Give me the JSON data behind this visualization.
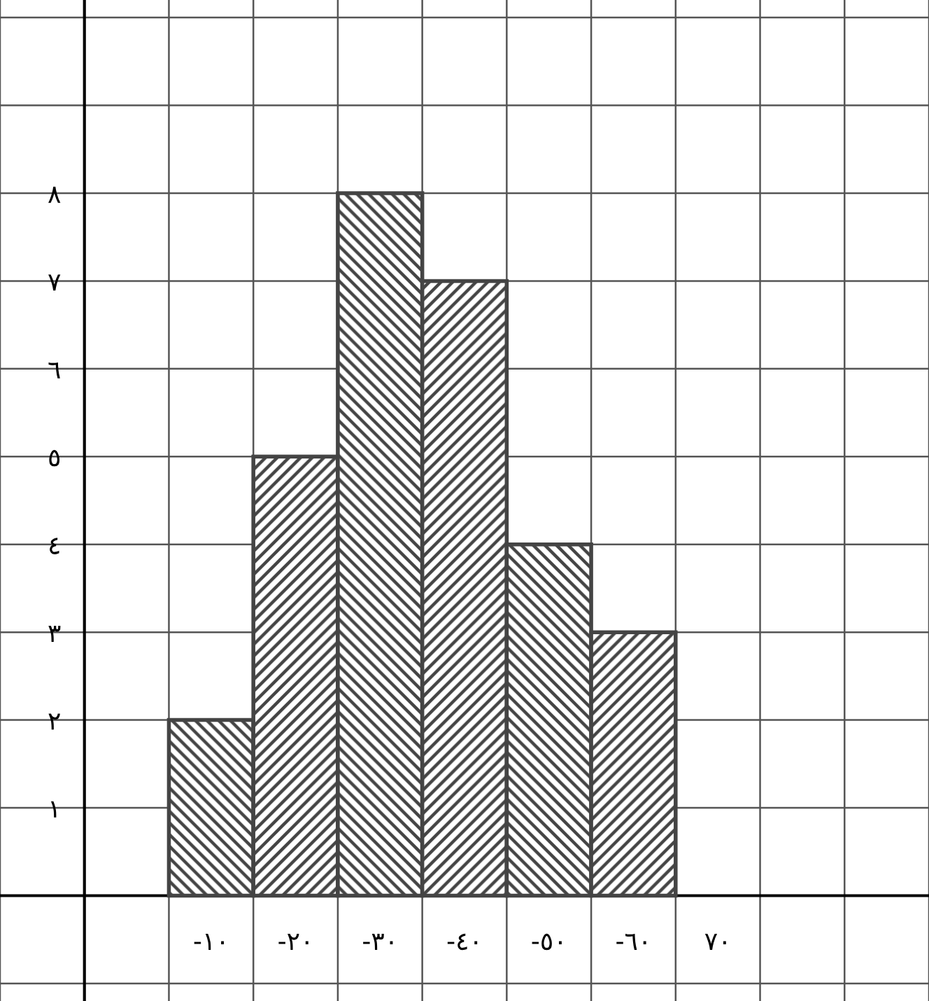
{
  "chart_data": {
    "type": "bar",
    "categories": [
      "-١٠",
      "-٢٠",
      "-٣٠",
      "-٤٠",
      "-٥٠",
      "-٦٠",
      "٧٠"
    ],
    "values": [
      2,
      5,
      8,
      7,
      4,
      3,
      null
    ],
    "color": "#444444",
    "ylim": [
      -1.2,
      10.2
    ],
    "yticks": [
      {
        "value": -1,
        "label": null
      },
      {
        "value": 0,
        "label": null
      },
      {
        "value": 1,
        "label": "١"
      },
      {
        "value": 2,
        "label": "٢"
      },
      {
        "value": 3,
        "label": "٣"
      },
      {
        "value": 4,
        "label": "٤"
      },
      {
        "value": 5,
        "label": "٥"
      },
      {
        "value": 6,
        "label": "٦"
      },
      {
        "value": 7,
        "label": "٧"
      },
      {
        "value": 8,
        "label": "٨"
      },
      {
        "value": 9,
        "label": null
      },
      {
        "value": 10,
        "label": null
      }
    ],
    "grid": true
  }
}
